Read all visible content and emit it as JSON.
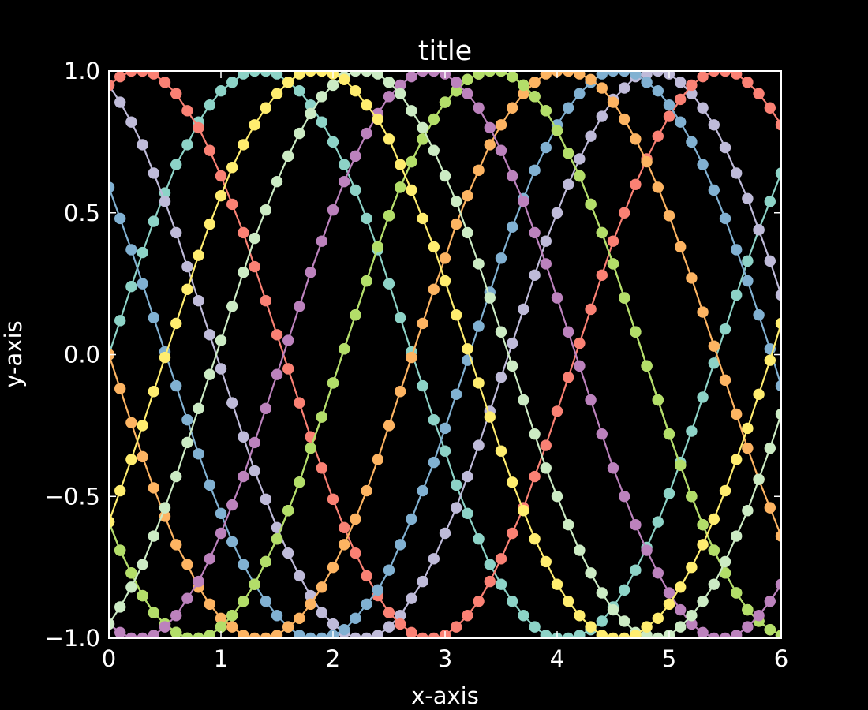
{
  "chart_data": {
    "type": "line",
    "title": "title",
    "xlabel": "x-axis",
    "ylabel": "y-axis",
    "xlim": [
      0,
      6
    ],
    "ylim": [
      -1,
      1
    ],
    "xticks": [
      0,
      1,
      2,
      3,
      4,
      5,
      6
    ],
    "xtick_labels": [
      "0",
      "1",
      "2",
      "3",
      "4",
      "5",
      "6"
    ],
    "yticks": [
      -1,
      -0.5,
      0,
      0.5,
      1
    ],
    "ytick_labels": [
      "−1.0",
      "−0.5",
      "0.0",
      "0.5",
      "1.0"
    ],
    "grid": false,
    "background": "#000000",
    "axis_color": "#ffffff",
    "marker": "circle",
    "x": [
      0.0,
      0.1,
      0.2,
      0.3,
      0.4,
      0.5,
      0.6,
      0.7,
      0.8,
      0.9,
      1.0,
      1.1,
      1.2,
      1.3,
      1.4,
      1.5,
      1.6,
      1.7,
      1.8,
      1.9,
      2.0,
      2.1,
      2.2,
      2.3,
      2.4,
      2.5,
      2.6,
      2.7,
      2.8,
      2.9,
      3.0,
      3.1,
      3.2,
      3.3,
      3.4,
      3.5,
      3.6,
      3.7,
      3.8,
      3.9,
      4.0,
      4.1,
      4.2,
      4.3,
      4.4,
      4.5,
      4.6,
      4.7,
      4.8,
      4.9,
      5.0,
      5.1,
      5.2,
      5.3,
      5.4,
      5.5,
      5.6,
      5.7,
      5.8,
      5.9,
      6.0
    ],
    "series": [
      {
        "color": "#8dd3c7",
        "values": [
          0.0,
          0.12,
          0.24,
          0.36,
          0.47,
          0.57,
          0.67,
          0.74,
          0.82,
          0.88,
          0.93,
          0.96,
          0.99,
          1.0,
          1.0,
          0.99,
          0.96,
          0.93,
          0.88,
          0.82,
          0.75,
          0.67,
          0.58,
          0.48,
          0.37,
          0.25,
          0.13,
          0.01,
          -0.11,
          -0.23,
          -0.34,
          -0.46,
          -0.56,
          -0.65,
          -0.74,
          -0.81,
          -0.87,
          -0.92,
          -0.96,
          -0.99,
          -1.0,
          -1.0,
          -0.99,
          -0.97,
          -0.94,
          -0.89,
          -0.83,
          -0.76,
          -0.68,
          -0.59,
          -0.49,
          -0.38,
          -0.27,
          -0.15,
          -0.03,
          0.09,
          0.21,
          0.33,
          0.44,
          0.54,
          0.64
        ]
      },
      {
        "color": "#feffb3",
        "values": [
          -0.59,
          -0.69,
          -0.77,
          -0.85,
          -0.91,
          -0.95,
          -0.98,
          -1.0,
          -1.0,
          -0.99,
          -0.96,
          -0.92,
          -0.87,
          -0.81,
          -0.73,
          -0.65,
          -0.55,
          -0.45,
          -0.33,
          -0.22,
          -0.1,
          0.02,
          0.14,
          0.26,
          0.38,
          0.49,
          0.59,
          0.68,
          0.76,
          0.83,
          0.89,
          0.93,
          0.97,
          0.99,
          1.0,
          1.0,
          0.98,
          0.95,
          0.91,
          0.86,
          0.79,
          0.71,
          0.63,
          0.53,
          0.43,
          0.32,
          0.2,
          0.08,
          -0.04,
          -0.16,
          -0.28,
          -0.39,
          -0.5,
          -0.6,
          -0.69,
          -0.77,
          -0.84,
          -0.9,
          -0.94,
          -0.97,
          -0.99
        ]
      },
      {
        "color": "#bfbbd9",
        "values": [
          0.95,
          0.89,
          0.82,
          0.74,
          0.64,
          0.54,
          0.43,
          0.31,
          0.19,
          0.07,
          -0.05,
          -0.17,
          -0.29,
          -0.41,
          -0.51,
          -0.61,
          -0.7,
          -0.78,
          -0.85,
          -0.91,
          -0.95,
          -0.98,
          -1.0,
          -1.0,
          -0.99,
          -0.96,
          -0.92,
          -0.86,
          -0.8,
          -0.72,
          -0.63,
          -0.54,
          -0.43,
          -0.32,
          -0.2,
          -0.08,
          0.04,
          0.16,
          0.28,
          0.4,
          0.5,
          0.6,
          0.69,
          0.77,
          0.84,
          0.9,
          0.94,
          0.98,
          0.99,
          1.0,
          0.99,
          0.96,
          0.92,
          0.87,
          0.81,
          0.73,
          0.64,
          0.55,
          0.44,
          0.33,
          0.21
        ]
      },
      {
        "color": "#fa8174",
        "values": [
          0.95,
          0.98,
          1.0,
          1.0,
          0.99,
          0.96,
          0.92,
          0.86,
          0.8,
          0.72,
          0.63,
          0.53,
          0.43,
          0.31,
          0.19,
          0.07,
          -0.05,
          -0.17,
          -0.29,
          -0.4,
          -0.51,
          -0.61,
          -0.7,
          -0.78,
          -0.85,
          -0.91,
          -0.95,
          -0.98,
          -1.0,
          -1.0,
          -0.99,
          -0.96,
          -0.92,
          -0.87,
          -0.8,
          -0.72,
          -0.63,
          -0.54,
          -0.43,
          -0.32,
          -0.2,
          -0.08,
          0.04,
          0.16,
          0.28,
          0.4,
          0.5,
          0.6,
          0.69,
          0.77,
          0.84,
          0.9,
          0.95,
          0.98,
          1.0,
          1.0,
          0.99,
          0.96,
          0.92,
          0.87,
          0.81
        ]
      },
      {
        "color": "#81b1d2",
        "values": [
          0.59,
          0.48,
          0.37,
          0.25,
          0.13,
          0.01,
          -0.11,
          -0.23,
          -0.35,
          -0.46,
          -0.56,
          -0.66,
          -0.74,
          -0.81,
          -0.87,
          -0.92,
          -0.96,
          -0.99,
          -1.0,
          -1.0,
          -0.99,
          -0.97,
          -0.93,
          -0.88,
          -0.83,
          -0.76,
          -0.67,
          -0.58,
          -0.48,
          -0.38,
          -0.26,
          -0.14,
          -0.02,
          0.1,
          0.22,
          0.34,
          0.45,
          0.55,
          0.65,
          0.73,
          0.81,
          0.87,
          0.92,
          0.96,
          0.99,
          1.0,
          1.0,
          0.99,
          0.96,
          0.93,
          0.88,
          0.82,
          0.75,
          0.67,
          0.58,
          0.48,
          0.37,
          0.26,
          0.14,
          0.02,
          -0.11
        ]
      },
      {
        "color": "#fdb462",
        "values": [
          0.0,
          -0.12,
          -0.24,
          -0.36,
          -0.47,
          -0.57,
          -0.67,
          -0.74,
          -0.82,
          -0.88,
          -0.93,
          -0.96,
          -0.99,
          -1.0,
          -1.0,
          -0.99,
          -0.96,
          -0.93,
          -0.88,
          -0.82,
          -0.75,
          -0.67,
          -0.58,
          -0.48,
          -0.37,
          -0.25,
          -0.13,
          -0.01,
          0.11,
          0.23,
          0.34,
          0.46,
          0.56,
          0.65,
          0.74,
          0.81,
          0.87,
          0.92,
          0.96,
          0.99,
          1.0,
          1.0,
          0.99,
          0.97,
          0.94,
          0.89,
          0.83,
          0.76,
          0.68,
          0.59,
          0.49,
          0.38,
          0.27,
          0.15,
          0.03,
          -0.09,
          -0.21,
          -0.33,
          -0.44,
          -0.54,
          -0.64
        ]
      },
      {
        "color": "#b3de69",
        "values": [
          -0.59,
          -0.69,
          -0.77,
          -0.85,
          -0.91,
          -0.95,
          -0.98,
          -1.0,
          -1.0,
          -0.99,
          -0.96,
          -0.92,
          -0.87,
          -0.81,
          -0.73,
          -0.65,
          -0.55,
          -0.45,
          -0.33,
          -0.22,
          -0.1,
          0.02,
          0.14,
          0.26,
          0.38,
          0.49,
          0.59,
          0.68,
          0.76,
          0.83,
          0.89,
          0.93,
          0.97,
          0.99,
          1.0,
          1.0,
          0.98,
          0.95,
          0.91,
          0.86,
          0.79,
          0.71,
          0.63,
          0.53,
          0.43,
          0.32,
          0.2,
          0.08,
          -0.04,
          -0.16,
          -0.28,
          -0.39,
          -0.5,
          -0.6,
          -0.69,
          -0.77,
          -0.84,
          -0.9,
          -0.94,
          -0.97,
          -0.99
        ]
      },
      {
        "color": "#bc82bd",
        "values": [
          -0.95,
          -0.98,
          -1.0,
          -1.0,
          -0.99,
          -0.96,
          -0.92,
          -0.86,
          -0.8,
          -0.72,
          -0.63,
          -0.53,
          -0.43,
          -0.31,
          -0.19,
          -0.07,
          0.05,
          0.17,
          0.29,
          0.4,
          0.51,
          0.61,
          0.7,
          0.78,
          0.85,
          0.91,
          0.95,
          0.98,
          1.0,
          1.0,
          0.99,
          0.96,
          0.92,
          0.87,
          0.8,
          0.72,
          0.63,
          0.54,
          0.43,
          0.32,
          0.2,
          0.08,
          -0.04,
          -0.16,
          -0.28,
          -0.4,
          -0.5,
          -0.6,
          -0.69,
          -0.77,
          -0.84,
          -0.9,
          -0.95,
          -0.98,
          -1.0,
          -1.0,
          -0.99,
          -0.96,
          -0.92,
          -0.87,
          -0.81
        ]
      },
      {
        "color": "#ccebc4",
        "values": [
          -0.95,
          -0.89,
          -0.82,
          -0.74,
          -0.64,
          -0.54,
          -0.43,
          -0.31,
          -0.19,
          -0.07,
          0.05,
          0.17,
          0.29,
          0.41,
          0.51,
          0.61,
          0.7,
          0.78,
          0.85,
          0.91,
          0.95,
          0.98,
          1.0,
          1.0,
          0.99,
          0.96,
          0.92,
          0.86,
          0.8,
          0.72,
          0.63,
          0.54,
          0.43,
          0.32,
          0.2,
          0.08,
          -0.04,
          -0.16,
          -0.28,
          -0.4,
          -0.5,
          -0.6,
          -0.69,
          -0.77,
          -0.84,
          -0.9,
          -0.94,
          -0.98,
          -0.99,
          -1.0,
          -0.99,
          -0.96,
          -0.92,
          -0.87,
          -0.81,
          -0.73,
          -0.64,
          -0.55,
          -0.44,
          -0.33,
          -0.21
        ]
      },
      {
        "color": "#ffed6f",
        "values": [
          -0.59,
          -0.48,
          -0.37,
          -0.25,
          -0.13,
          -0.01,
          0.11,
          0.23,
          0.35,
          0.46,
          0.56,
          0.66,
          0.74,
          0.81,
          0.87,
          0.92,
          0.96,
          0.99,
          1.0,
          1.0,
          0.99,
          0.97,
          0.93,
          0.88,
          0.83,
          0.76,
          0.67,
          0.58,
          0.48,
          0.38,
          0.26,
          0.14,
          0.02,
          -0.1,
          -0.22,
          -0.34,
          -0.45,
          -0.55,
          -0.65,
          -0.73,
          -0.81,
          -0.87,
          -0.92,
          -0.96,
          -0.99,
          -1.0,
          -1.0,
          -0.99,
          -0.96,
          -0.93,
          -0.88,
          -0.82,
          -0.75,
          -0.67,
          -0.58,
          -0.48,
          -0.37,
          -0.26,
          -0.14,
          -0.02,
          0.11
        ]
      }
    ]
  }
}
